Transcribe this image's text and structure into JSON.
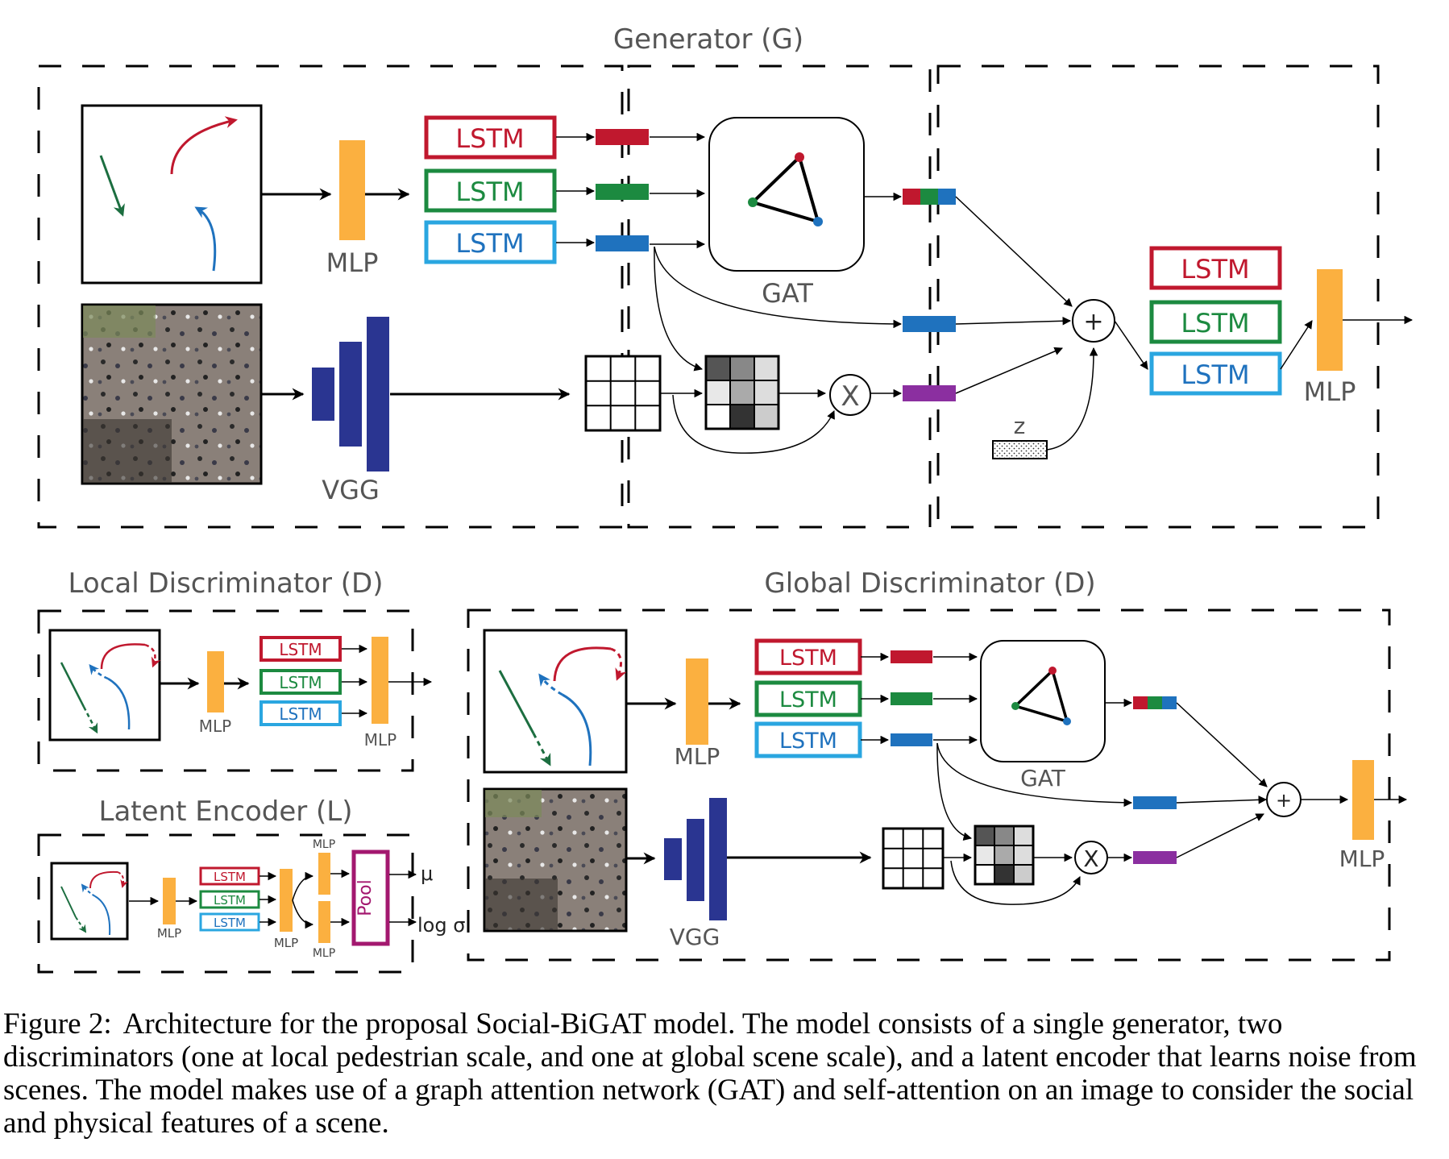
{
  "colors": {
    "red": "#c0182e",
    "green": "#1c8a40",
    "blue": "#2aa6e0",
    "embedBlue": "#1f72be",
    "purple": "#8b2fa0",
    "mlp": "#fbb040",
    "vgg": "#2a3591",
    "pool": "#a3186f"
  },
  "generator": {
    "title": "Generator (G)",
    "lstm": [
      "LSTM",
      "LSTM",
      "LSTM"
    ],
    "mlp_label": "MLP",
    "vgg_label": "VGG",
    "gat_label": "GAT",
    "attention_op": "X",
    "sum_op": "+",
    "noise_label": "z",
    "out_lstm": [
      "LSTM",
      "LSTM",
      "LSTM"
    ],
    "out_mlp_label": "MLP"
  },
  "local_disc": {
    "title": "Local Discriminator (D)",
    "lstm": [
      "LSTM",
      "LSTM",
      "LSTM"
    ],
    "mlp_label": "MLP",
    "out_mlp_label": "MLP"
  },
  "latent_enc": {
    "title": "Latent Encoder (L)",
    "lstm": [
      "LSTM",
      "LSTM",
      "LSTM"
    ],
    "mlp_label": "MLP",
    "mlp2_label": "MLP",
    "mlp_top_label": "MLP",
    "mlp_bottom_label": "MLP",
    "pool_label": "Pool",
    "mu_label": "μ",
    "logsigma_label": "log σ"
  },
  "global_disc": {
    "title": "Global Discriminator (D)",
    "lstm": [
      "LSTM",
      "LSTM",
      "LSTM"
    ],
    "mlp_label": "MLP",
    "vgg_label": "VGG",
    "gat_label": "GAT",
    "attention_op": "X",
    "sum_op": "+",
    "out_mlp_label": "MLP"
  },
  "caption": {
    "figure": "Figure 2:",
    "text": "Architecture for the proposal Social-BiGAT model. The model consists of a single generator, two discriminators (one at local pedestrian scale, and one at global scene scale), and a latent encoder that learns noise from scenes. The model makes use of a graph attention network (GAT) and self-attention on an image to consider the social and physical features of a scene."
  }
}
